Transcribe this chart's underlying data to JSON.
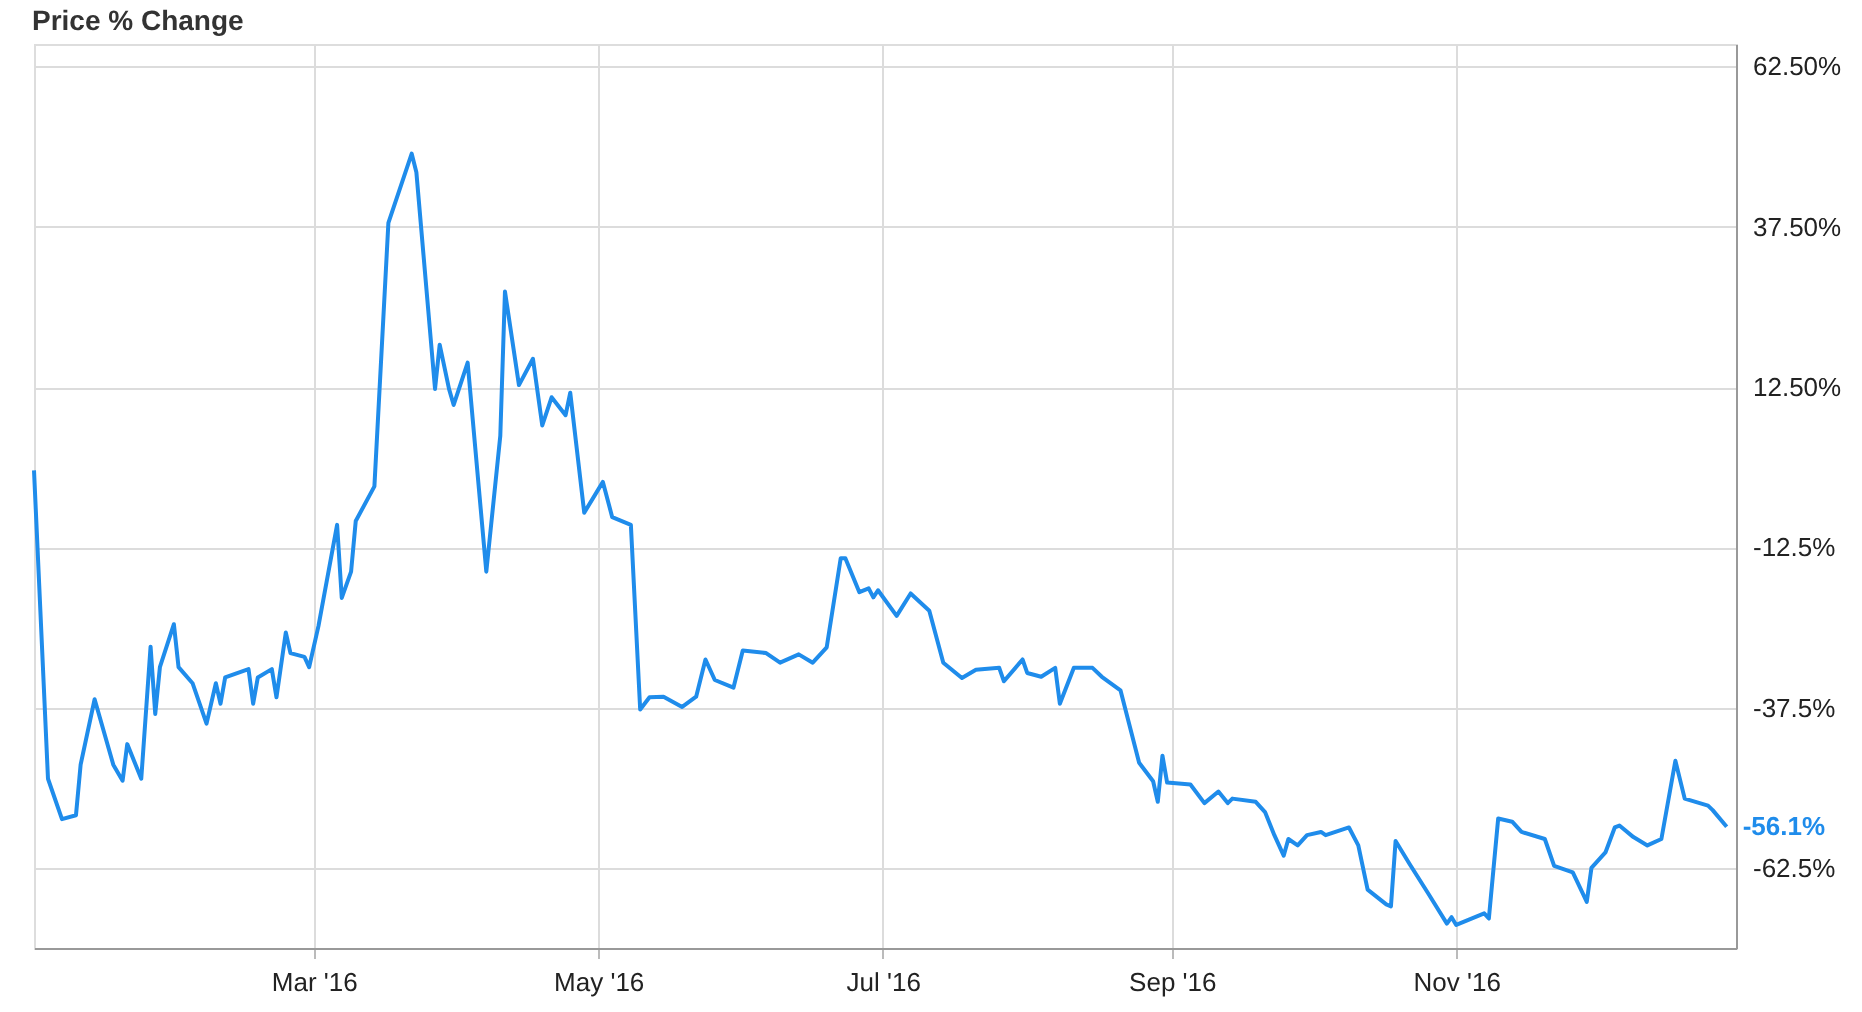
{
  "chart_data": {
    "type": "line",
    "title": "Price % Change",
    "x": [
      "2016-01-01",
      "2016-01-04",
      "2016-01-07",
      "2016-01-10",
      "2016-01-11",
      "2016-01-14",
      "2016-01-18",
      "2016-01-20",
      "2016-01-21",
      "2016-01-24",
      "2016-01-26",
      "2016-01-27",
      "2016-01-28",
      "2016-01-31",
      "2016-02-01",
      "2016-02-04",
      "2016-02-07",
      "2016-02-09",
      "2016-02-10",
      "2016-02-11",
      "2016-02-16",
      "2016-02-17",
      "2016-02-18",
      "2016-02-21",
      "2016-02-22",
      "2016-02-24",
      "2016-02-25",
      "2016-02-28",
      "2016-02-29",
      "2016-03-02",
      "2016-03-06",
      "2016-03-07",
      "2016-03-09",
      "2016-03-10",
      "2016-03-14",
      "2016-03-17",
      "2016-03-22",
      "2016-03-23",
      "2016-03-27",
      "2016-03-28",
      "2016-03-30",
      "2016-03-31",
      "2016-04-03",
      "2016-04-07",
      "2016-04-10",
      "2016-04-11",
      "2016-04-14",
      "2016-04-17",
      "2016-04-19",
      "2016-04-21",
      "2016-04-24",
      "2016-04-25",
      "2016-04-28",
      "2016-05-02",
      "2016-05-04",
      "2016-05-08",
      "2016-05-10",
      "2016-05-12",
      "2016-05-15",
      "2016-05-19",
      "2016-05-22",
      "2016-05-24",
      "2016-05-26",
      "2016-05-30",
      "2016-06-01",
      "2016-06-06",
      "2016-06-09",
      "2016-06-13",
      "2016-06-16",
      "2016-06-19",
      "2016-06-22",
      "2016-06-23",
      "2016-06-26",
      "2016-06-28",
      "2016-06-29",
      "2016-06-30",
      "2016-07-04",
      "2016-07-07",
      "2016-07-11",
      "2016-07-14",
      "2016-07-18",
      "2016-07-21",
      "2016-07-26",
      "2016-07-27",
      "2016-07-31",
      "2016-08-01",
      "2016-08-04",
      "2016-08-07",
      "2016-08-08",
      "2016-08-11",
      "2016-08-15",
      "2016-08-17",
      "2016-08-21",
      "2016-08-25",
      "2016-08-28",
      "2016-08-29",
      "2016-08-30",
      "2016-08-31",
      "2016-09-05",
      "2016-09-08",
      "2016-09-11",
      "2016-09-13",
      "2016-09-14",
      "2016-09-19",
      "2016-09-21",
      "2016-09-23",
      "2016-09-25",
      "2016-09-26",
      "2016-09-28",
      "2016-09-30",
      "2016-10-03",
      "2016-10-04",
      "2016-10-09",
      "2016-10-11",
      "2016-10-13",
      "2016-10-17",
      "2016-10-18",
      "2016-10-19",
      "2016-10-22",
      "2016-10-26",
      "2016-10-30",
      "2016-10-31",
      "2016-11-01",
      "2016-11-07",
      "2016-11-08",
      "2016-11-10",
      "2016-11-13",
      "2016-11-15",
      "2016-11-20",
      "2016-11-22",
      "2016-11-26",
      "2016-11-29",
      "2016-11-30",
      "2016-12-03",
      "2016-12-05",
      "2016-12-06",
      "2016-12-09",
      "2016-12-12",
      "2016-12-15",
      "2016-12-18",
      "2016-12-20",
      "2016-12-25",
      "2016-12-26",
      "2016-12-29"
    ],
    "series": [
      {
        "color": "#1f8ceb",
        "values": [
          -0.5,
          -48.6,
          -54.9,
          -54.3,
          -46.4,
          -36.2,
          -46.4,
          -48.9,
          -43.2,
          -48.6,
          -28.0,
          -38.5,
          -31.2,
          -24.5,
          -31.2,
          -33.7,
          -40.0,
          -33.7,
          -36.9,
          -32.8,
          -31.5,
          -36.9,
          -32.8,
          -31.5,
          -35.9,
          -25.8,
          -29.0,
          -29.6,
          -31.2,
          -24.8,
          -9.0,
          -20.4,
          -16.3,
          -8.4,
          -3.0,
          38.1,
          48.9,
          46.0,
          12.2,
          19.1,
          12.2,
          9.7,
          16.3,
          -16.3,
          4.9,
          27.4,
          12.8,
          16.9,
          6.5,
          10.9,
          8.1,
          11.6,
          -7.1,
          -2.3,
          -7.8,
          -9.0,
          -37.8,
          -35.9,
          -35.8,
          -37.4,
          -35.8,
          -30.0,
          -33.2,
          -34.4,
          -28.6,
          -29.0,
          -30.5,
          -29.2,
          -30.5,
          -28.1,
          -14.2,
          -14.2,
          -19.5,
          -18.9,
          -20.3,
          -19.2,
          -23.2,
          -19.7,
          -22.4,
          -30.5,
          -32.9,
          -31.6,
          -31.3,
          -33.4,
          -30.0,
          -32.1,
          -32.7,
          -31.3,
          -36.9,
          -31.3,
          -31.3,
          -32.7,
          -34.8,
          -46.1,
          -49.0,
          -52.2,
          -45.0,
          -49.2,
          -49.5,
          -52.4,
          -50.6,
          -52.4,
          -51.7,
          -52.2,
          -53.8,
          -57.4,
          -60.6,
          -58.0,
          -59.0,
          -57.4,
          -56.9,
          -57.4,
          -56.2,
          -59.0,
          -65.9,
          -68.2,
          -68.5,
          -58.3,
          -61.9,
          -66.5,
          -71.2,
          -70.2,
          -71.4,
          -69.6,
          -70.4,
          -54.8,
          -55.3,
          -56.9,
          -58.0,
          -62.2,
          -63.2,
          -67.8,
          -62.5,
          -60.1,
          -56.2,
          -55.9,
          -57.7,
          -59.0,
          -58.0,
          -45.8,
          -51.7,
          -52.8,
          -53.5,
          -56.1
        ],
        "value_labels": [
          null,
          null,
          null,
          null,
          null,
          null,
          null,
          null,
          null,
          null,
          null,
          null,
          null,
          null,
          null,
          null,
          null,
          null,
          null,
          null,
          null,
          null,
          null,
          null,
          null,
          null,
          null,
          null,
          null,
          null,
          null,
          null,
          null,
          null,
          null,
          null,
          null,
          null,
          null,
          null,
          null,
          null,
          null,
          null,
          null,
          null,
          null,
          null,
          null,
          null,
          null,
          null,
          null,
          null,
          null,
          null,
          null,
          null,
          null,
          null,
          null,
          null,
          null,
          null,
          null,
          null,
          null,
          null,
          null,
          null,
          null,
          null,
          null,
          null,
          null,
          null,
          null,
          null,
          null,
          null,
          null,
          null,
          null,
          null,
          null,
          null,
          null,
          null,
          null,
          null,
          null,
          null,
          null,
          null,
          null,
          null,
          null,
          null,
          null,
          null,
          null,
          null,
          null,
          null,
          null,
          null,
          null,
          null,
          null,
          null,
          null,
          null,
          null,
          null,
          null,
          null,
          null,
          null,
          null,
          null,
          null,
          null,
          null,
          null,
          null,
          null,
          null,
          null,
          null,
          null,
          null,
          null,
          null,
          null,
          null,
          null,
          null,
          null,
          null,
          null,
          null,
          null,
          null,
          "-56.1%"
        ]
      }
    ],
    "xlim": [
      "2016-01-01",
      "2016-12-31"
    ],
    "xticks": [
      {
        "value": "2016-03-01",
        "label": "Mar '16"
      },
      {
        "value": "2016-05-01",
        "label": "May '16"
      },
      {
        "value": "2016-07-01",
        "label": "Jul '16"
      },
      {
        "value": "2016-09-01",
        "label": "Sep '16"
      },
      {
        "value": "2016-11-01",
        "label": "Nov '16"
      }
    ],
    "ylim": [
      -75,
      66
    ],
    "yticks": [
      {
        "value": 62.5,
        "label": "62.50%"
      },
      {
        "value": 37.5,
        "label": "37.50%"
      },
      {
        "value": 12.5,
        "label": "12.50%"
      },
      {
        "value": -12.5,
        "label": "-12.5%"
      },
      {
        "value": -37.5,
        "label": "-37.5%"
      },
      {
        "value": -62.5,
        "label": "-62.5%"
      }
    ],
    "grid": true,
    "marker": "none",
    "line_style": "solid"
  }
}
